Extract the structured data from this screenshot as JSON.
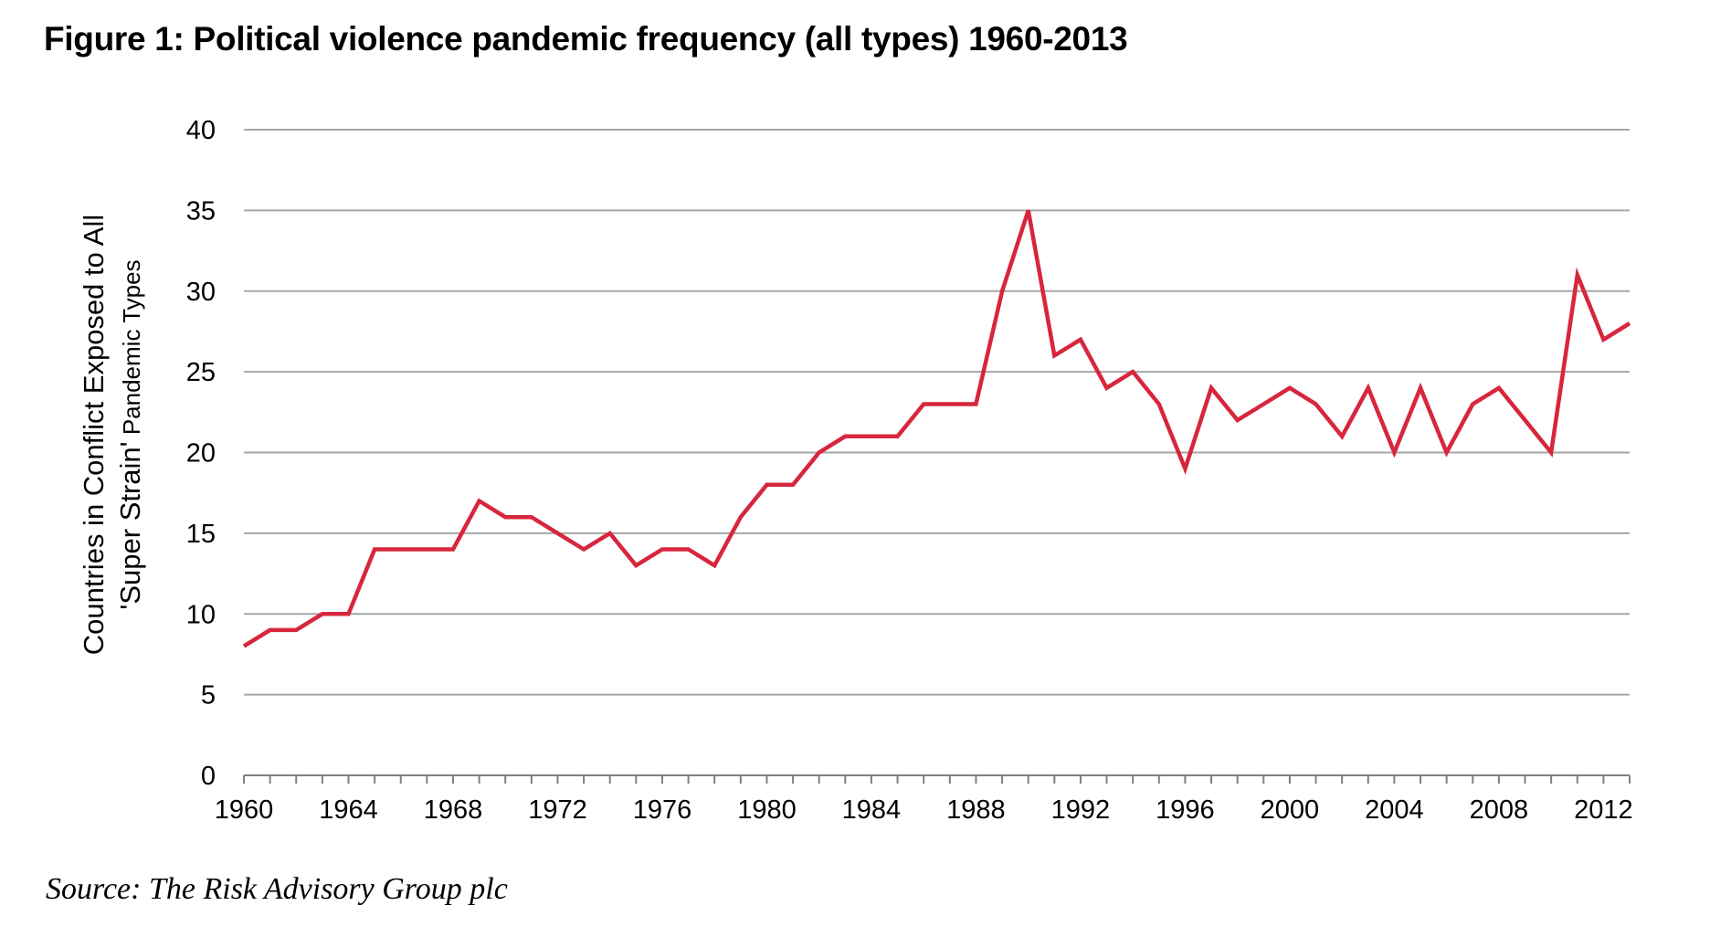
{
  "figure": {
    "title": "Figure 1: Political violence pandemic frequency (all types) 1960-2013",
    "source": "Source: The Risk Advisory Group plc"
  },
  "colors": {
    "line": "#d7263d",
    "grid": "#a6a6a6",
    "axis": "#7f7f7f"
  },
  "chart_data": {
    "type": "line",
    "title": "Figure 1: Political violence pandemic frequency (all types) 1960-2013",
    "xlabel": "",
    "ylabel_line1": "Countries in Conflict Exposed to All",
    "ylabel_line2_main": "'Super Strain'",
    "ylabel_line2_small": "Pandemic Types",
    "ylim": [
      0,
      40
    ],
    "xlim": [
      1960,
      2013
    ],
    "y_ticks": [
      0,
      5,
      10,
      15,
      20,
      25,
      30,
      35,
      40
    ],
    "x_ticks": [
      1960,
      1964,
      1968,
      1972,
      1976,
      1980,
      1984,
      1988,
      1992,
      1996,
      2000,
      2004,
      2008,
      2012
    ],
    "grid": true,
    "legend": "none",
    "series": [
      {
        "name": "Countries in conflict",
        "x": [
          1960,
          1961,
          1962,
          1963,
          1964,
          1965,
          1966,
          1967,
          1968,
          1969,
          1970,
          1971,
          1972,
          1973,
          1974,
          1975,
          1976,
          1977,
          1978,
          1979,
          1980,
          1981,
          1982,
          1983,
          1984,
          1985,
          1986,
          1987,
          1988,
          1989,
          1990,
          1991,
          1992,
          1993,
          1994,
          1995,
          1996,
          1997,
          1998,
          1999,
          2000,
          2001,
          2002,
          2003,
          2004,
          2005,
          2006,
          2007,
          2008,
          2009,
          2010,
          2011,
          2012,
          2013
        ],
        "values": [
          8,
          9,
          9,
          10,
          10,
          14,
          14,
          14,
          14,
          17,
          16,
          16,
          15,
          14,
          15,
          13,
          14,
          14,
          13,
          16,
          18,
          18,
          20,
          21,
          21,
          21,
          23,
          23,
          23,
          30,
          35,
          26,
          27,
          24,
          25,
          23,
          19,
          24,
          22,
          23,
          24,
          23,
          21,
          24,
          20,
          24,
          20,
          23,
          24,
          22,
          20,
          31,
          27,
          28
        ]
      }
    ]
  }
}
